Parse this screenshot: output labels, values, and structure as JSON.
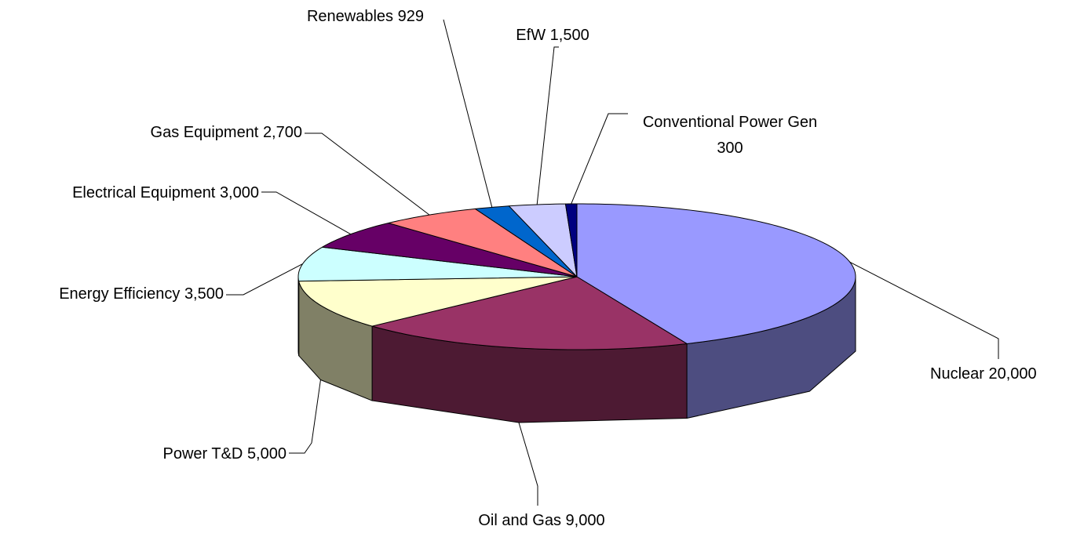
{
  "chart_data": {
    "type": "pie3d",
    "categories": [
      "Nuclear",
      "Oil and Gas",
      "Power T&D",
      "Energy Efficiency",
      "Electrical Equipment",
      "Gas Equipment",
      "Renewables",
      "EfW",
      "Conventional Power Gen"
    ],
    "values": [
      20000,
      9000,
      5000,
      3500,
      3000,
      2700,
      929,
      1500,
      300
    ],
    "value_labels": [
      "20,000",
      "9,000",
      "5,000",
      "3,500",
      "3,000",
      "2,700",
      "929",
      "1,500",
      "300"
    ],
    "colors": [
      "#9999ff",
      "#993366",
      "#ffffcc",
      "#ccffff",
      "#660066",
      "#ff8080",
      "#0066cc",
      "#ccccff",
      "#000080"
    ]
  }
}
